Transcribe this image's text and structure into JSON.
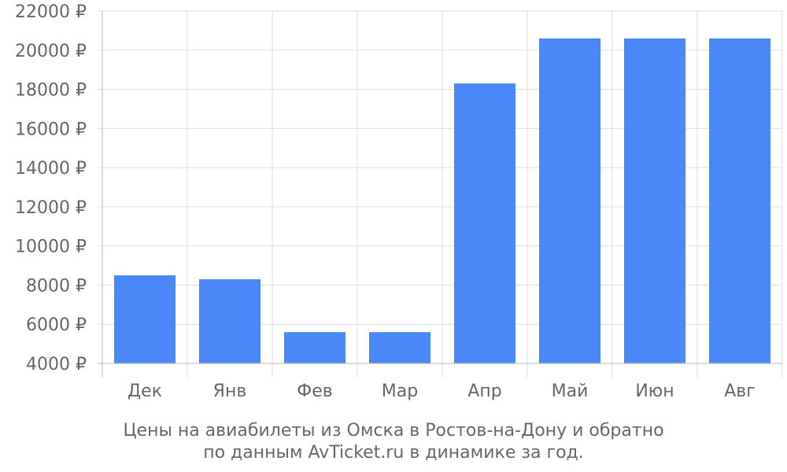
{
  "chart_data": {
    "type": "bar",
    "categories": [
      "Дек",
      "Янв",
      "Фев",
      "Мар",
      "Апр",
      "Май",
      "Июн",
      "Авг"
    ],
    "values": [
      8500,
      8300,
      5600,
      5600,
      18300,
      20600,
      20600,
      20600
    ],
    "ylim": [
      4000,
      22000
    ],
    "yticks": [
      4000,
      6000,
      8000,
      10000,
      12000,
      14000,
      16000,
      18000,
      20000,
      22000
    ],
    "ytick_suffix": " ₽",
    "bar_color": "#4a88f8",
    "grid_color": "#dddddd",
    "axis_color": "#bbbbbb",
    "grid": true,
    "legend": false,
    "caption_lines": [
      "Цены на авиабилеты из Омска в Ростов-на-Дону и обратно",
      "по данным AvTicket.ru в динамике за год."
    ]
  }
}
